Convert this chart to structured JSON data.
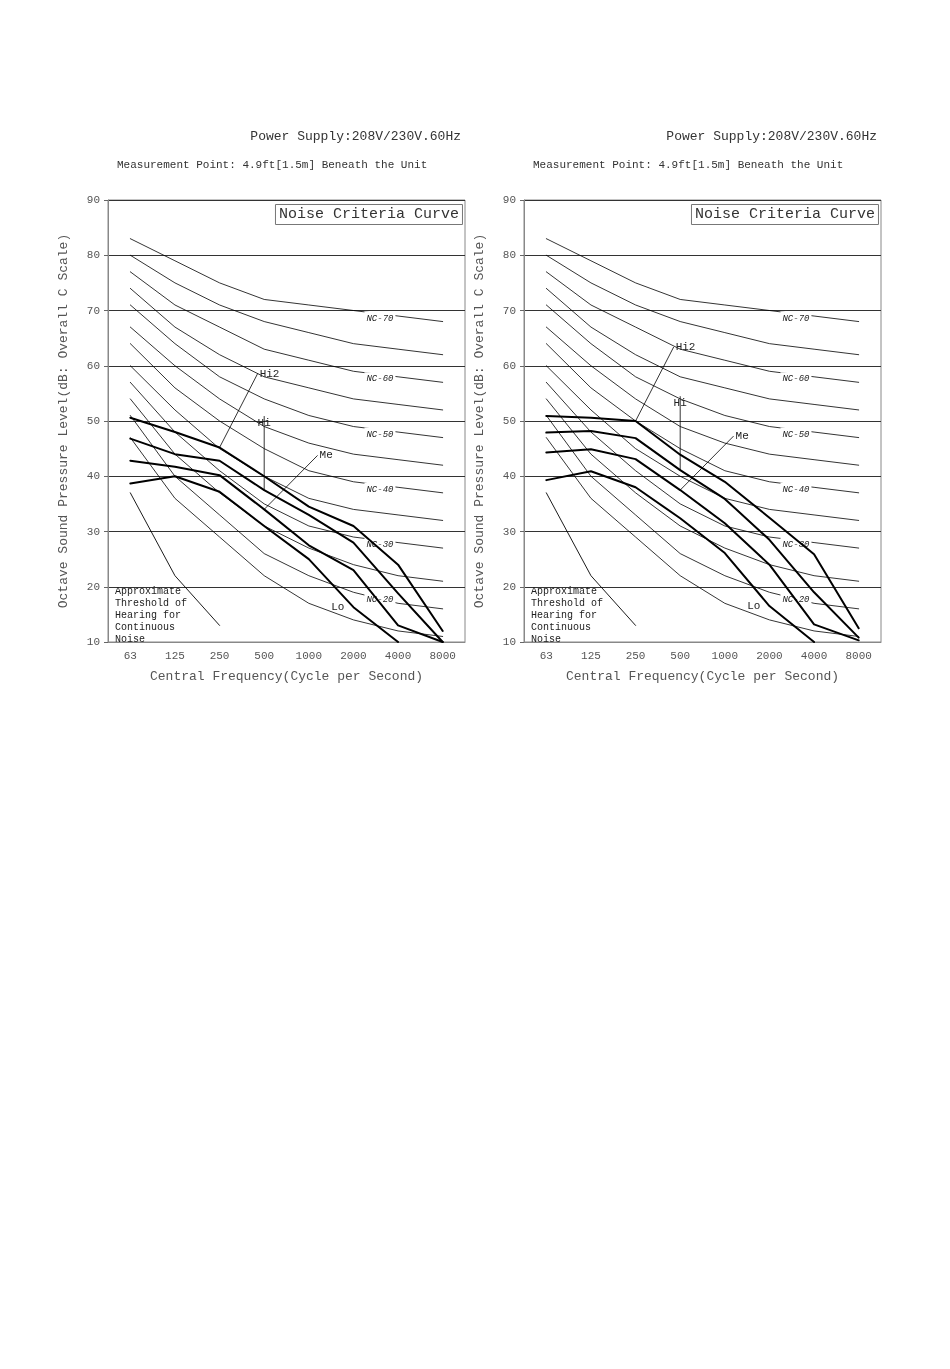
{
  "chart_data": [
    {
      "type": "line",
      "title": "Noise Criteria Curve",
      "subtitle": "Measurement Point: 4.9ft[1.5m] Beneath the Unit",
      "annotations": [
        "Power Supply:208V/230V.60Hz"
      ],
      "xlabel": "Central Frequency(Cycle per Second)",
      "ylabel": "Octave Sound Pressure Level(dB: Overall C Scale)",
      "categories": [
        "63",
        "125",
        "250",
        "500",
        "1000",
        "2000",
        "4000",
        "8000"
      ],
      "ylim": [
        10,
        90
      ],
      "yticks": [
        10,
        20,
        30,
        40,
        50,
        60,
        70,
        80,
        90
      ],
      "grid": "y",
      "legend": false,
      "marker": "none",
      "line_style": "solid",
      "series": [
        {
          "name": "Hi2",
          "color": "#000000",
          "values": [
            50.6,
            48,
            45.2,
            40,
            34.5,
            31,
            24,
            12
          ]
        },
        {
          "name": "Hi",
          "color": "#000000",
          "values": [
            46.8,
            44,
            42.8,
            37.5,
            33,
            28,
            18.8,
            10
          ]
        },
        {
          "name": "Me",
          "color": "#000000",
          "values": [
            42.8,
            41.7,
            40.2,
            34,
            27.5,
            23,
            13,
            10
          ]
        },
        {
          "name": "Lo",
          "color": "#000000",
          "values": [
            38.7,
            40,
            37.2,
            31,
            25,
            16.3,
            10,
            null
          ]
        },
        {
          "name": "Approximate Threshold of Hearing for Continuous Noise",
          "color": "#000000",
          "values": [
            37,
            22,
            13,
            null,
            null,
            null,
            null,
            null
          ]
        },
        {
          "name": "NC-70",
          "color": "#000000",
          "values": [
            83,
            79,
            75,
            72,
            71,
            70,
            69,
            68
          ]
        },
        {
          "color": "#000000",
          "values": [
            80,
            75,
            71,
            68,
            66,
            64,
            63,
            62
          ]
        },
        {
          "name": "NC-60",
          "color": "#000000",
          "values": [
            77,
            71,
            67,
            63,
            61,
            59,
            58,
            57
          ]
        },
        {
          "color": "#000000",
          "values": [
            74,
            67,
            62,
            58,
            56,
            54,
            53,
            52
          ]
        },
        {
          "name": "NC-50",
          "color": "#000000",
          "values": [
            71,
            64,
            58,
            54,
            51,
            49,
            48,
            47
          ]
        },
        {
          "color": "#000000",
          "values": [
            67,
            60,
            54,
            49,
            46,
            44,
            43,
            42
          ]
        },
        {
          "name": "NC-40",
          "color": "#000000",
          "values": [
            64,
            56,
            50,
            45,
            41,
            39,
            38,
            37
          ]
        },
        {
          "color": "#000000",
          "values": [
            60,
            52,
            45,
            40,
            36,
            34,
            33,
            32
          ]
        },
        {
          "name": "NC-30",
          "color": "#000000",
          "values": [
            57,
            48,
            41,
            35,
            31,
            29,
            28,
            27
          ]
        },
        {
          "color": "#000000",
          "values": [
            54,
            44,
            37,
            31,
            27,
            24,
            22,
            21
          ]
        },
        {
          "name": "NC-20",
          "color": "#000000",
          "values": [
            51,
            40,
            33,
            26,
            22,
            19,
            17,
            16
          ]
        },
        {
          "color": "#000000",
          "values": [
            47,
            36,
            29,
            22,
            17,
            14,
            12,
            11
          ]
        }
      ]
    },
    {
      "type": "line",
      "title": "Noise Criteria Curve",
      "subtitle": "Measurement Point: 4.9ft[1.5m] Beneath the Unit",
      "annotations": [
        "Power Supply:208V/230V.60Hz"
      ],
      "xlabel": "Central Frequency(Cycle per Second)",
      "ylabel": "Octave Sound Pressure Level(dB: Overall C Scale)",
      "categories": [
        "63",
        "125",
        "250",
        "500",
        "1000",
        "2000",
        "4000",
        "8000"
      ],
      "ylim": [
        10,
        90
      ],
      "yticks": [
        10,
        20,
        30,
        40,
        50,
        60,
        70,
        80,
        90
      ],
      "grid": "y",
      "legend": false,
      "marker": "none",
      "line_style": "solid",
      "series": [
        {
          "name": "Hi2",
          "color": "#000000",
          "values": [
            50.9,
            50.6,
            50,
            43.9,
            39,
            32.5,
            25.9,
            12.5
          ]
        },
        {
          "name": "Hi",
          "color": "#000000",
          "values": [
            47.9,
            48.2,
            46.9,
            41.1,
            35.9,
            28.5,
            19,
            10.8
          ]
        },
        {
          "name": "Me",
          "color": "#000000",
          "values": [
            44.3,
            44.9,
            43.1,
            37.5,
            31.5,
            24,
            13.2,
            10.3
          ]
        },
        {
          "name": "Lo",
          "color": "#000000",
          "values": [
            39.3,
            40.9,
            38,
            32.4,
            26.1,
            16.5,
            10,
            null
          ]
        },
        {
          "name": "Approximate Threshold of Hearing for Continuous Noise",
          "color": "#000000",
          "values": [
            37,
            22,
            13,
            null,
            null,
            null,
            null,
            null
          ]
        },
        {
          "name": "NC-70",
          "color": "#000000",
          "values": [
            83,
            79,
            75,
            72,
            71,
            70,
            69,
            68
          ]
        },
        {
          "color": "#000000",
          "values": [
            80,
            75,
            71,
            68,
            66,
            64,
            63,
            62
          ]
        },
        {
          "name": "NC-60",
          "color": "#000000",
          "values": [
            77,
            71,
            67,
            63,
            61,
            59,
            58,
            57
          ]
        },
        {
          "color": "#000000",
          "values": [
            74,
            67,
            62,
            58,
            56,
            54,
            53,
            52
          ]
        },
        {
          "name": "NC-50",
          "color": "#000000",
          "values": [
            71,
            64,
            58,
            54,
            51,
            49,
            48,
            47
          ]
        },
        {
          "color": "#000000",
          "values": [
            67,
            60,
            54,
            49,
            46,
            44,
            43,
            42
          ]
        },
        {
          "name": "NC-40",
          "color": "#000000",
          "values": [
            64,
            56,
            50,
            45,
            41,
            39,
            38,
            37
          ]
        },
        {
          "color": "#000000",
          "values": [
            60,
            52,
            45,
            40,
            36,
            34,
            33,
            32
          ]
        },
        {
          "name": "NC-30",
          "color": "#000000",
          "values": [
            57,
            48,
            41,
            35,
            31,
            29,
            28,
            27
          ]
        },
        {
          "color": "#000000",
          "values": [
            54,
            44,
            37,
            31,
            27,
            24,
            22,
            21
          ]
        },
        {
          "name": "NC-20",
          "color": "#000000",
          "values": [
            51,
            40,
            33,
            26,
            22,
            19,
            17,
            16
          ]
        },
        {
          "color": "#000000",
          "values": [
            47,
            36,
            29,
            22,
            17,
            14,
            12,
            11
          ]
        }
      ]
    }
  ]
}
